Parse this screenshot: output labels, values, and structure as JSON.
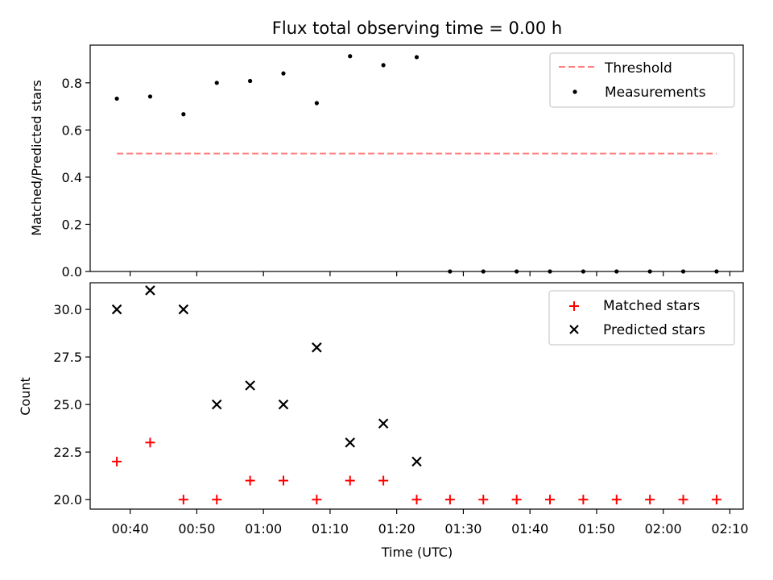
{
  "chart_data": [
    {
      "type": "scatter",
      "title": "Flux total observing time = 0.00 h",
      "ylabel": "Matched/Predicted stars",
      "xlabel": "",
      "x_range": [
        "00:34",
        "02:12"
      ],
      "ylim": [
        0.0,
        0.96
      ],
      "y_ticks": [
        0.0,
        0.2,
        0.4,
        0.6,
        0.8
      ],
      "y_tick_labels": [
        "0.0",
        "0.2",
        "0.4",
        "0.6",
        "0.8"
      ],
      "legend_position": "top-right",
      "grid": false,
      "threshold": {
        "name": "Threshold",
        "value": 0.5,
        "x_start": "00:38",
        "x_end": "02:08",
        "color": "#ff7f7f",
        "style": "dashed"
      },
      "series": [
        {
          "name": "Measurements",
          "marker": "dot",
          "color": "#000000",
          "x": [
            "00:38",
            "00:43",
            "00:48",
            "00:53",
            "00:58",
            "01:03",
            "01:08",
            "01:13",
            "01:18",
            "01:23",
            "01:28",
            "01:33",
            "01:38",
            "01:43",
            "01:48",
            "01:53",
            "01:58",
            "02:03",
            "02:08"
          ],
          "y": [
            0.733,
            0.742,
            0.667,
            0.8,
            0.808,
            0.84,
            0.714,
            0.913,
            0.875,
            0.909,
            0.0,
            0.0,
            0.0,
            0.0,
            0.0,
            0.0,
            0.0,
            0.0,
            0.0
          ]
        }
      ]
    },
    {
      "type": "scatter",
      "title": "",
      "ylabel": "Count",
      "xlabel": "Time (UTC)",
      "x_range": [
        "00:34",
        "02:12"
      ],
      "ylim": [
        19.5,
        31.4
      ],
      "y_ticks": [
        20.0,
        22.5,
        25.0,
        27.5,
        30.0
      ],
      "y_tick_labels": [
        "20.0",
        "22.5",
        "25.0",
        "27.5",
        "30.0"
      ],
      "x_ticks": [
        "00:40",
        "00:50",
        "01:00",
        "01:10",
        "01:20",
        "01:30",
        "01:40",
        "01:50",
        "02:00",
        "02:10"
      ],
      "legend_position": "top-right",
      "grid": false,
      "series": [
        {
          "name": "Matched stars",
          "marker": "plus",
          "color": "#ff0000",
          "x": [
            "00:38",
            "00:43",
            "00:48",
            "00:53",
            "00:58",
            "01:03",
            "01:08",
            "01:13",
            "01:18",
            "01:23",
            "01:28",
            "01:33",
            "01:38",
            "01:43",
            "01:48",
            "01:53",
            "01:58",
            "02:03",
            "02:08"
          ],
          "y": [
            22,
            23,
            20,
            20,
            21,
            21,
            20,
            21,
            21,
            20,
            20,
            20,
            20,
            20,
            20,
            20,
            20,
            20,
            20
          ]
        },
        {
          "name": "Predicted stars",
          "marker": "x",
          "color": "#000000",
          "x": [
            "00:38",
            "00:43",
            "00:48",
            "00:53",
            "00:58",
            "01:03",
            "01:08",
            "01:13",
            "01:18",
            "01:23"
          ],
          "y": [
            30,
            31,
            30,
            25,
            26,
            25,
            28,
            23,
            24,
            22
          ]
        }
      ]
    }
  ]
}
